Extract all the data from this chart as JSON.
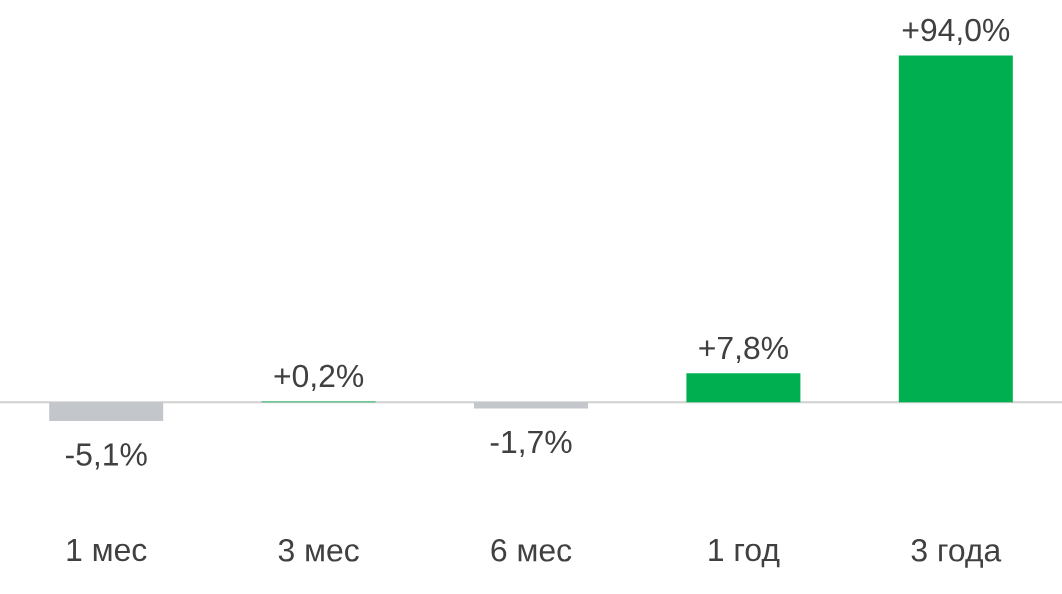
{
  "chart_data": {
    "type": "bar",
    "categories": [
      "1 мес",
      "3 мес",
      "6 мес",
      "1 год",
      "3 года"
    ],
    "values": [
      -5.1,
      0.2,
      -1.7,
      7.8,
      94.0
    ],
    "colors": [
      "#c3c7cb",
      "#00b050",
      "#c3c7cb",
      "#00b050",
      "#00b050"
    ],
    "value_labels": [
      "-5,1%",
      "+0,2%",
      "-1,7%",
      "+7,8%",
      "+94,0%"
    ]
  }
}
